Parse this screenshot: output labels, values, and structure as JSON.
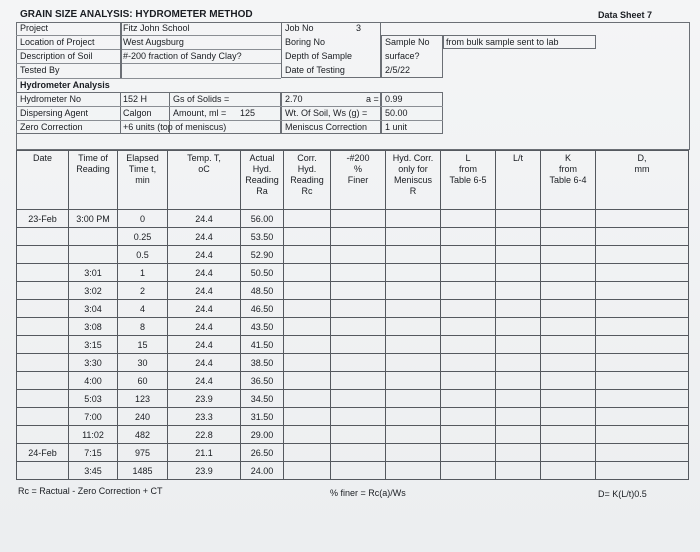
{
  "header": {
    "title": "GRAIN SIZE ANALYSIS: HYDROMETER METHOD",
    "sheet": "Data Sheet 7",
    "fields": [
      {
        "label": "Project",
        "value": "Fitz John School"
      },
      {
        "label": "Location of Project",
        "value": "West Augsburg"
      },
      {
        "label": "Description of Soil",
        "value": "#-200 fraction of Sandy Clay?"
      },
      {
        "label": "Tested By"
      }
    ],
    "job": [
      {
        "label": "Job No",
        "value": "3"
      },
      {
        "label": "Boring No"
      },
      {
        "label": "Depth of Sample"
      },
      {
        "label": "Date of Testing",
        "value": "2/5/22"
      }
    ],
    "sample": {
      "label": "Sample No",
      "value": "from bulk sample sent to lab",
      "depth": "surface?"
    }
  },
  "hydrometer": {
    "title": "Hydrometer Analysis",
    "rows": [
      {
        "label": "Hydrometer No",
        "value": "152 H",
        "label2": "Gs of Solids =",
        "value2": "2.70",
        "label3": "a =",
        "value3": "0.99"
      },
      {
        "label": "Dispersing Agent",
        "value": "Calgon",
        "label2": "Amount, ml =",
        "value2": "125",
        "label3": "Wt. Of Soil, Ws (g) =",
        "value3": "50.00"
      },
      {
        "label": "Zero Correction",
        "value": "+6 units (top of meniscus)",
        "label3": "Meniscus Correction",
        "value3": "1 unit"
      }
    ]
  },
  "table": {
    "columns": [
      [
        "Date"
      ],
      [
        "Time of",
        "Reading"
      ],
      [
        "Elapsed",
        "Time t,",
        "min"
      ],
      [
        "Temp. T,",
        "oC"
      ],
      [
        "Actual",
        "Hyd.",
        "Reading",
        "Ra"
      ],
      [
        "Corr.",
        "Hyd.",
        "Reading",
        "Rc"
      ],
      [
        "-#200",
        "%",
        "Finer"
      ],
      [
        "Hyd. Corr.",
        "only for",
        "Meniscus",
        "R"
      ],
      [
        "L",
        "from",
        "Table 6-5"
      ],
      [
        "L/t"
      ],
      [
        "K",
        "from",
        "Table 6-4"
      ],
      [
        "D,",
        "mm"
      ]
    ],
    "rows": [
      [
        "23-Feb",
        "3:00 PM",
        "0",
        "24.4",
        "56.00"
      ],
      [
        null,
        null,
        "0.25",
        "24.4",
        "53.50"
      ],
      [
        null,
        null,
        "0.5",
        "24.4",
        "52.90"
      ],
      [
        null,
        "3:01",
        "1",
        "24.4",
        "50.50"
      ],
      [
        null,
        "3:02",
        "2",
        "24.4",
        "48.50"
      ],
      [
        null,
        "3:04",
        "4",
        "24.4",
        "46.50"
      ],
      [
        null,
        "3:08",
        "8",
        "24.4",
        "43.50"
      ],
      [
        null,
        "3:15",
        "15",
        "24.4",
        "41.50"
      ],
      [
        null,
        "3:30",
        "30",
        "24.4",
        "38.50"
      ],
      [
        null,
        "4:00",
        "60",
        "24.4",
        "36.50"
      ],
      [
        null,
        "5:03",
        "123",
        "23.9",
        "34.50"
      ],
      [
        null,
        "7:00",
        "240",
        "23.3",
        "31.50"
      ],
      [
        null,
        "11:02",
        "482",
        "22.8",
        "29.00"
      ],
      [
        "24-Feb",
        "7:15",
        "975",
        "21.1",
        "26.50"
      ],
      [
        null,
        "3:45",
        "1485",
        "23.9",
        "24.00"
      ]
    ]
  },
  "footer": [
    "Rc = Ractual - Zero Correction + CT",
    "% finer = Rc(a)/Ws",
    "D= K(L/t)0.5"
  ]
}
